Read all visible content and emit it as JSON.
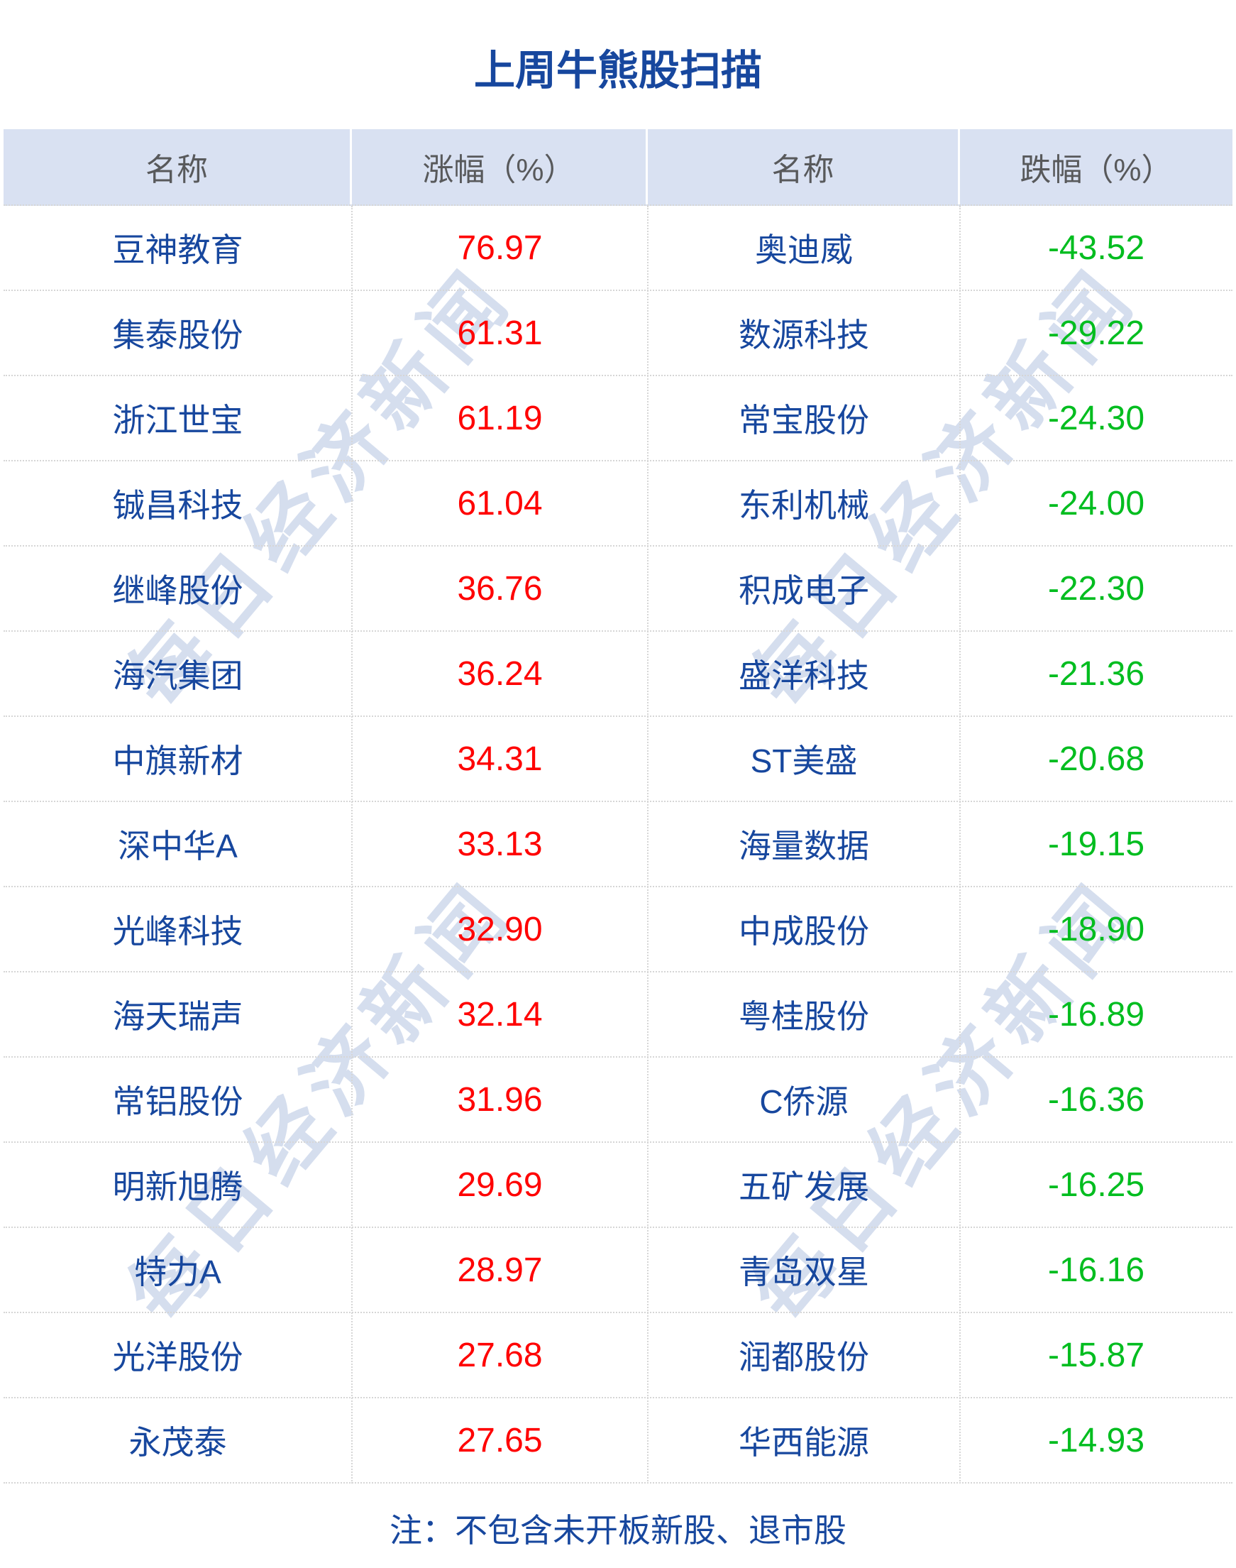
{
  "page": {
    "title": "上周牛熊股扫描",
    "note": "注：不包含未开板新股、退市股",
    "watermark_text": "每日经济新闻"
  },
  "table": {
    "headers": [
      "名称",
      "涨幅（%）",
      "名称",
      "跌幅（%）"
    ],
    "rows": [
      {
        "up_name": "豆神教育",
        "up_value": "76.97",
        "down_name": "奥迪威",
        "down_value": "-43.52"
      },
      {
        "up_name": "集泰股份",
        "up_value": "61.31",
        "down_name": "数源科技",
        "down_value": "-29.22"
      },
      {
        "up_name": "浙江世宝",
        "up_value": "61.19",
        "down_name": "常宝股份",
        "down_value": "-24.30"
      },
      {
        "up_name": "铖昌科技",
        "up_value": "61.04",
        "down_name": "东利机械",
        "down_value": "-24.00"
      },
      {
        "up_name": "继峰股份",
        "up_value": "36.76",
        "down_name": "积成电子",
        "down_value": "-22.30"
      },
      {
        "up_name": "海汽集团",
        "up_value": "36.24",
        "down_name": "盛洋科技",
        "down_value": "-21.36"
      },
      {
        "up_name": "中旗新材",
        "up_value": "34.31",
        "down_name": "ST美盛",
        "down_value": "-20.68"
      },
      {
        "up_name": "深中华A",
        "up_value": "33.13",
        "down_name": "海量数据",
        "down_value": "-19.15"
      },
      {
        "up_name": "光峰科技",
        "up_value": "32.90",
        "down_name": "中成股份",
        "down_value": "-18.90"
      },
      {
        "up_name": "海天瑞声",
        "up_value": "32.14",
        "down_name": "粤桂股份",
        "down_value": "-16.89"
      },
      {
        "up_name": "常铝股份",
        "up_value": "31.96",
        "down_name": "C侨源",
        "down_value": "-16.36"
      },
      {
        "up_name": "明新旭腾",
        "up_value": "29.69",
        "down_name": "五矿发展",
        "down_value": "-16.25"
      },
      {
        "up_name": "特力A",
        "up_value": "28.97",
        "down_name": "青岛双星",
        "down_value": "-16.16"
      },
      {
        "up_name": "光洋股份",
        "up_value": "27.68",
        "down_name": "润都股份",
        "down_value": "-15.87"
      },
      {
        "up_name": "永茂泰",
        "up_value": "27.65",
        "down_name": "华西能源",
        "down_value": "-14.93"
      }
    ]
  },
  "colors": {
    "accent_blue": "#17479e",
    "up_red": "#ff0000",
    "down_green": "#00bd1f",
    "header_bg": "#d9e1f2",
    "header_text": "#58595b",
    "watermark_blue": "rgba(23,71,158,0.18)"
  }
}
